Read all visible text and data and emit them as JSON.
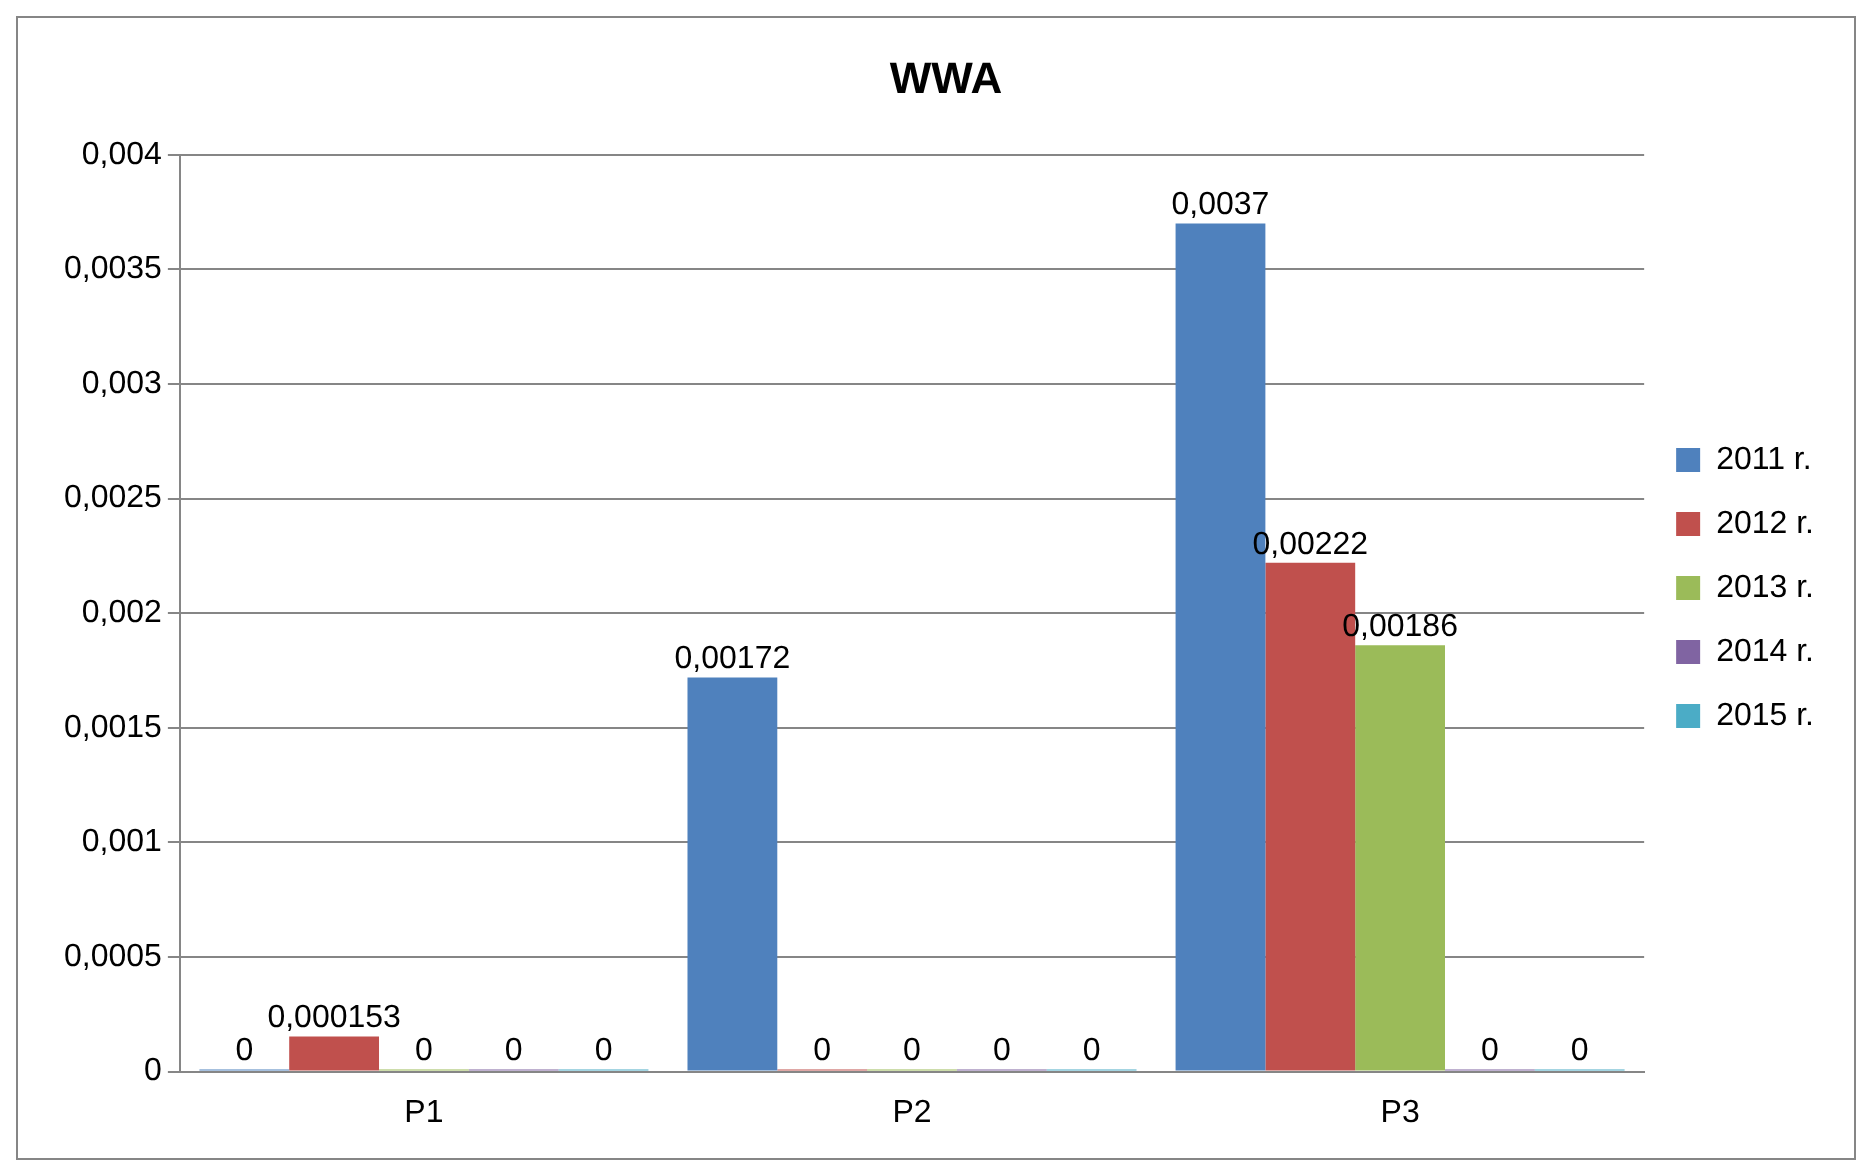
{
  "chart_data": {
    "type": "bar",
    "title": "WWA",
    "categories": [
      "P1",
      "P2",
      "P3"
    ],
    "series": [
      {
        "name": "2011 r.",
        "color": "#4f81bd",
        "values": [
          0,
          0.00172,
          0.0037
        ],
        "value_labels": [
          "0",
          "0,00172",
          "0,0037"
        ]
      },
      {
        "name": "2012 r.",
        "color": "#c0504d",
        "values": [
          0.000153,
          0,
          0.00222
        ],
        "value_labels": [
          "0,000153",
          "0",
          "0,00222"
        ]
      },
      {
        "name": "2013 r.",
        "color": "#9bbb59",
        "values": [
          0,
          0,
          0.00186
        ],
        "value_labels": [
          "0",
          "0",
          "0,00186"
        ]
      },
      {
        "name": "2014 r.",
        "color": "#8064a2",
        "values": [
          0,
          0,
          0
        ],
        "value_labels": [
          "0",
          "0",
          "0"
        ]
      },
      {
        "name": "2015 r.",
        "color": "#4bacc6",
        "values": [
          0,
          0,
          0
        ],
        "value_labels": [
          "0",
          "0",
          "0"
        ]
      }
    ],
    "ylim": [
      0,
      0.004
    ],
    "yticks": [
      {
        "value": 0,
        "label": "0"
      },
      {
        "value": 0.0005,
        "label": "0,0005"
      },
      {
        "value": 0.001,
        "label": "0,001"
      },
      {
        "value": 0.0015,
        "label": "0,0015"
      },
      {
        "value": 0.002,
        "label": "0,002"
      },
      {
        "value": 0.0025,
        "label": "0,0025"
      },
      {
        "value": 0.003,
        "label": "0,003"
      },
      {
        "value": 0.0035,
        "label": "0,0035"
      },
      {
        "value": 0.004,
        "label": "0,004"
      }
    ],
    "grid": "y",
    "legend": "right"
  }
}
